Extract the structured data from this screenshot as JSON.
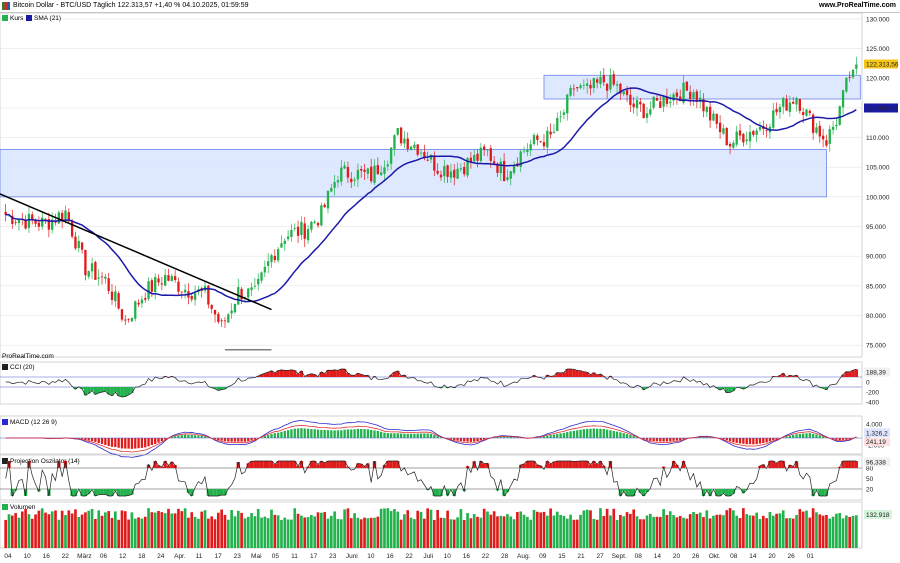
{
  "header": {
    "title": "Bitcoin Dollar - BTC/USD Täglich 122.313,57 +1,40 % 04.10.2025, 01:59:59",
    "site": "www.ProRealTime.com"
  },
  "colors": {
    "up": "#22b14c",
    "down": "#e01b1b",
    "sma": "#1a1aa8",
    "zone_fill": "#dbe6ff",
    "zone_stroke": "#5a78e6",
    "cci_line": "#222222",
    "macd_line": "#2a2ad0",
    "signal_line": "#e03030",
    "grid": "#e4e4e4"
  },
  "watermark": "ProRealTime.com",
  "panels": {
    "price": {
      "legend": [
        "Kurs",
        "SMA (21)"
      ]
    },
    "cci": {
      "legend": "CCI (20)",
      "ticks": [
        "200",
        "0",
        "-200",
        "-400"
      ],
      "last": "188,39"
    },
    "macd": {
      "legend": "MACD (12 26 9)",
      "ticks": [
        "4.000",
        "2.000",
        "0",
        "-2.000"
      ],
      "last_a": "1.326,2",
      "last_b": "241,19"
    },
    "proj": {
      "legend": "Projection Oszilator (14)",
      "ticks": [
        "80",
        "50",
        "20"
      ],
      "last": "96,338"
    },
    "vol": {
      "legend": "Volumen",
      "last": "132.918"
    }
  },
  "x_axis_labels": [
    "04",
    "10",
    "16",
    "22",
    "März",
    "06",
    "12",
    "18",
    "24",
    "Apr.",
    "11",
    "17",
    "23",
    "Mai",
    "05",
    "11",
    "17",
    "23",
    "Juni",
    "10",
    "16",
    "22",
    "Juli",
    "10",
    "16",
    "22",
    "28",
    "Aug.",
    "09",
    "15",
    "21",
    "27",
    "Sept.",
    "08",
    "14",
    "20",
    "26",
    "Okt.",
    "08",
    "14",
    "20",
    "26",
    "01"
  ],
  "chart_data": {
    "type": "candlestick",
    "title": "Bitcoin Dollar - BTC/USD Täglich",
    "ylabel": "",
    "ylim": [
      73000,
      131000
    ],
    "y_ticks": [
      75000,
      80000,
      85000,
      90000,
      95000,
      100000,
      105000,
      110000,
      115000,
      120000,
      125000,
      130000
    ],
    "y_tick_labels": [
      "75.000",
      "80.000",
      "85.000",
      "90.000",
      "95.000",
      "100.000",
      "105.000",
      "110.000",
      "115.000",
      "120.000",
      "125.000",
      "130.000"
    ],
    "last_price": 122313.56,
    "last_price_label": "122.313,56",
    "sma_last": 114900.57,
    "sma_last_label": "114.900,57",
    "zones": [
      {
        "y_low": 100000,
        "y_high": 108000
      },
      {
        "y_low": 116500,
        "y_high": 120500
      }
    ],
    "trendline": {
      "from": [
        96500
      ],
      "to": [
        82500
      ]
    },
    "support_line": 74200,
    "key_points": [
      [
        0,
        97000
      ],
      [
        6,
        96000
      ],
      [
        12,
        95500
      ],
      [
        18,
        97500
      ],
      [
        24,
        88000
      ],
      [
        30,
        86000
      ],
      [
        36,
        79000
      ],
      [
        42,
        84000
      ],
      [
        48,
        86500
      ],
      [
        54,
        84500
      ],
      [
        60,
        83500
      ],
      [
        65,
        78000
      ],
      [
        70,
        84000
      ],
      [
        75,
        83500
      ],
      [
        80,
        90000
      ],
      [
        84,
        93500
      ],
      [
        90,
        94500
      ],
      [
        95,
        97000
      ],
      [
        100,
        104000
      ],
      [
        105,
        104000
      ],
      [
        110,
        103500
      ],
      [
        115,
        107000
      ],
      [
        118,
        110500
      ],
      [
        124,
        108500
      ],
      [
        130,
        105000
      ],
      [
        135,
        104500
      ],
      [
        140,
        106000
      ],
      [
        145,
        107500
      ],
      [
        150,
        104000
      ],
      [
        156,
        108000
      ],
      [
        160,
        109500
      ],
      [
        164,
        110000
      ],
      [
        167,
        113000
      ],
      [
        171,
        118500
      ],
      [
        175,
        117800
      ],
      [
        180,
        119500
      ],
      [
        184,
        118500
      ],
      [
        188,
        115500
      ],
      [
        193,
        114500
      ],
      [
        198,
        116500
      ],
      [
        203,
        117700
      ],
      [
        207,
        118000
      ],
      [
        212,
        113500
      ],
      [
        218,
        109000
      ],
      [
        222,
        110500
      ],
      [
        228,
        112000
      ],
      [
        233,
        115000
      ],
      [
        238,
        117000
      ],
      [
        242,
        113000
      ],
      [
        247,
        109500
      ],
      [
        250,
        113000
      ],
      [
        254,
        120500
      ],
      [
        256,
        122300
      ]
    ]
  }
}
